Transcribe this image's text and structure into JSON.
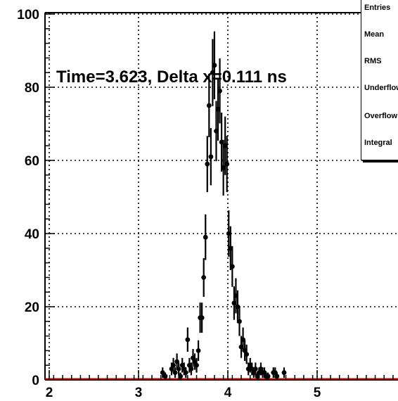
{
  "annotation": "Time=3.623, Delta x=0.111 ns",
  "stats_box": {
    "labels": [
      "Entries",
      "Mean",
      "RMS",
      "Underflow",
      "Overflow",
      "Integral"
    ]
  },
  "colors": {
    "axis": "#000000",
    "baseline": "#cc0000",
    "grid": "#000000",
    "marker": "#000000"
  },
  "chart_data": {
    "type": "scatter",
    "title": "",
    "xlabel": "",
    "ylabel": "",
    "xlim": [
      1.95,
      5.95
    ],
    "ylim": [
      0,
      100
    ],
    "grid": true,
    "x_ticks": [
      2,
      3,
      4,
      5
    ],
    "y_ticks": [
      0,
      20,
      40,
      60,
      80,
      100
    ],
    "series": [
      {
        "marker": "circle",
        "error_bars": true,
        "x": [
          3.27,
          3.3,
          3.37,
          3.39,
          3.41,
          3.43,
          3.45,
          3.47,
          3.49,
          3.51,
          3.53,
          3.55,
          3.57,
          3.59,
          3.61,
          3.63,
          3.65,
          3.67,
          3.69,
          3.71,
          3.73,
          3.75,
          3.77,
          3.79,
          3.81,
          3.83,
          3.85,
          3.87,
          3.89,
          3.91,
          3.93,
          3.95,
          3.97,
          3.99,
          4.01,
          4.03,
          4.05,
          4.07,
          4.09,
          4.11,
          4.13,
          4.15,
          4.17,
          4.19,
          4.21,
          4.23,
          4.25,
          4.27,
          4.29,
          4.31,
          4.33,
          4.35,
          4.37,
          4.39,
          4.41,
          4.43,
          4.45,
          4.51,
          4.53,
          4.55,
          4.63
        ],
        "y": [
          2,
          1,
          3,
          4,
          2,
          5,
          3,
          1,
          4,
          3,
          2,
          11,
          4,
          3,
          6,
          5,
          4,
          8,
          17,
          17,
          28,
          39,
          59,
          75,
          61,
          84,
          86,
          68,
          74,
          79,
          65,
          58,
          64,
          59,
          40,
          36,
          31,
          21,
          23,
          20,
          16,
          9,
          11,
          8,
          7,
          3,
          4,
          3,
          2,
          3,
          1,
          2,
          3,
          2,
          2,
          1,
          1,
          2,
          2,
          1,
          2
        ]
      }
    ]
  }
}
